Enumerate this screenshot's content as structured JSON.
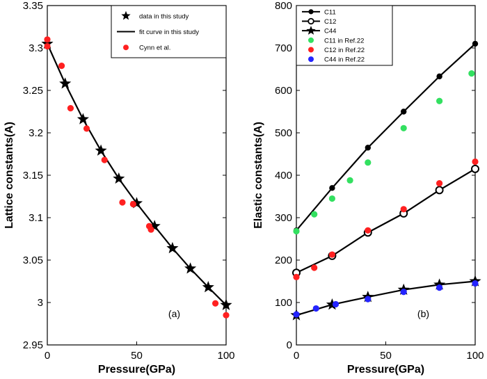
{
  "chart_data": [
    {
      "type": "scatter",
      "panel_label": "(a)",
      "xlabel": "Pressure(GPa)",
      "ylabel": "Lattice constants(A)",
      "xlim": [
        0,
        100
      ],
      "ylim": [
        2.95,
        3.35
      ],
      "xticks": [
        0,
        50,
        100
      ],
      "yticks": [
        2.95,
        3.0,
        3.05,
        3.1,
        3.15,
        3.2,
        3.25,
        3.3,
        3.35
      ],
      "xtick_labels": [
        "0",
        "50",
        "100"
      ],
      "ytick_labels": [
        "2.95",
        "3",
        "3.05",
        "3.1",
        "3.15",
        "3.2",
        "3.25",
        "3.3",
        "3.35"
      ],
      "legend_position": "top-right",
      "series": [
        {
          "name": "data in this study",
          "marker": "star",
          "color": "#000000",
          "x": [
            0,
            10,
            20,
            30,
            40,
            50,
            60,
            70,
            80,
            90,
            100
          ],
          "y": [
            3.305,
            3.258,
            3.216,
            3.179,
            3.146,
            3.117,
            3.09,
            3.064,
            3.04,
            3.018,
            2.997
          ]
        },
        {
          "name": "fit curve in this study",
          "marker": "line",
          "color": "#000000",
          "x": [
            0,
            10,
            20,
            30,
            40,
            50,
            60,
            70,
            80,
            90,
            100
          ],
          "y": [
            3.305,
            3.258,
            3.216,
            3.179,
            3.146,
            3.117,
            3.09,
            3.064,
            3.04,
            3.018,
            2.997
          ]
        },
        {
          "name": "Cynn et al.",
          "marker": "circle",
          "color": "#ff2020",
          "x": [
            0,
            0,
            8,
            13,
            22,
            32,
            42,
            48,
            57,
            58,
            94,
            100
          ],
          "y": [
            3.31,
            3.302,
            3.279,
            3.229,
            3.205,
            3.168,
            3.118,
            3.116,
            3.09,
            3.086,
            2.999,
            2.985
          ]
        }
      ]
    },
    {
      "type": "scatter",
      "panel_label": "(b)",
      "xlabel": "Pressure(GPa)",
      "ylabel": "Elastic constants(A)",
      "xlim": [
        0,
        100
      ],
      "ylim": [
        0,
        800
      ],
      "xticks": [
        0,
        50,
        100
      ],
      "yticks": [
        0,
        100,
        200,
        300,
        400,
        500,
        600,
        700,
        800
      ],
      "xtick_labels": [
        "0",
        "50",
        "100"
      ],
      "ytick_labels": [
        "0",
        "100",
        "200",
        "300",
        "400",
        "500",
        "600",
        "700",
        "800"
      ],
      "legend_position": "top-left",
      "series": [
        {
          "name": "C11",
          "marker": "filled-circle-line",
          "color": "#000000",
          "x": [
            0,
            20,
            40,
            60,
            80,
            100
          ],
          "y": [
            270,
            370,
            465,
            550,
            633,
            710
          ]
        },
        {
          "name": "C12",
          "marker": "open-circle-line",
          "color": "#000000",
          "x": [
            0,
            20,
            40,
            60,
            80,
            100
          ],
          "y": [
            170,
            210,
            265,
            310,
            365,
            415
          ]
        },
        {
          "name": "C44",
          "marker": "star-line",
          "color": "#000000",
          "x": [
            0,
            20,
            40,
            60,
            80,
            100
          ],
          "y": [
            70,
            95,
            113,
            130,
            142,
            150
          ]
        },
        {
          "name": "C11 in Ref.22",
          "marker": "circle",
          "color": "#33e060",
          "x": [
            0,
            10,
            20,
            30,
            40,
            60,
            80,
            98
          ],
          "y": [
            268,
            308,
            345,
            388,
            430,
            511,
            575,
            640
          ]
        },
        {
          "name": "C12 in Ref.22",
          "marker": "circle",
          "color": "#ff2020",
          "x": [
            0,
            10,
            20,
            40,
            60,
            80,
            100
          ],
          "y": [
            160,
            182,
            213,
            270,
            320,
            381,
            432
          ]
        },
        {
          "name": "C44 in Ref.22",
          "marker": "circle",
          "color": "#2424ff",
          "x": [
            0,
            11,
            22,
            40,
            60,
            80,
            100
          ],
          "y": [
            72,
            86,
            96,
            108,
            125,
            135,
            145
          ]
        }
      ]
    }
  ]
}
